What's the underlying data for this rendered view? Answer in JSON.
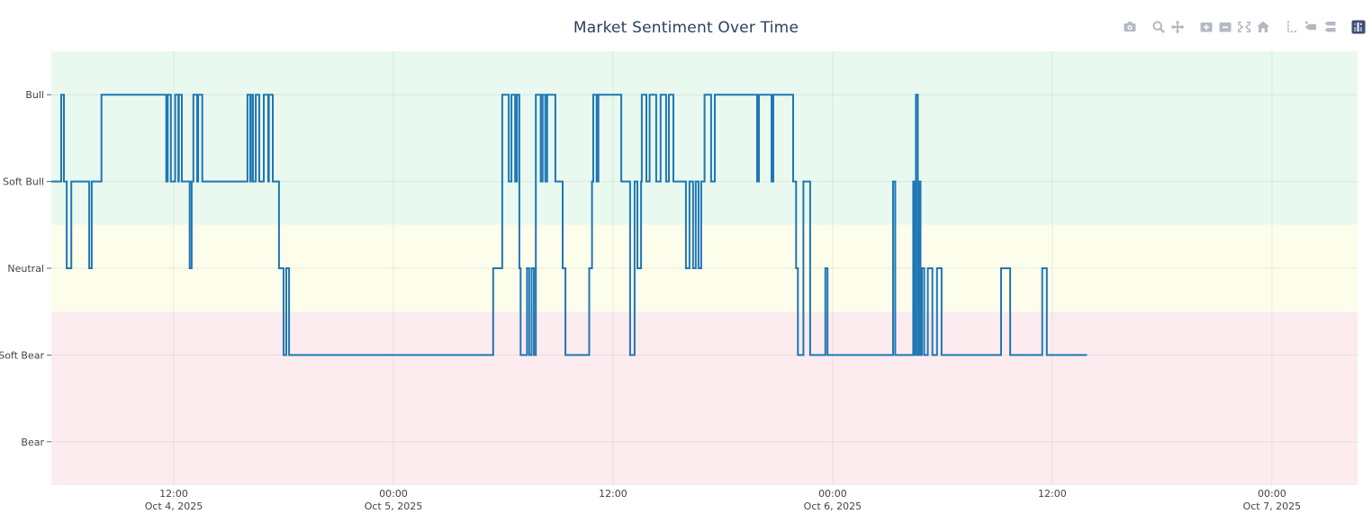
{
  "chart_data": {
    "type": "line",
    "subtype": "step-hv",
    "title": "Market Sentiment Over Time",
    "xlabel": "",
    "ylabel": "",
    "legend": null,
    "grid": true,
    "x_axis_unit": "hours since Oct 4, 2025 00:00",
    "x_range": [
      5.31,
      76.68
    ],
    "y_range": [
      -2.5,
      2.5
    ],
    "y_levels": [
      {
        "label": "Bull",
        "value": 2
      },
      {
        "label": "Soft Bull",
        "value": 1
      },
      {
        "label": "Neutral",
        "value": 0
      },
      {
        "label": "Soft Bear",
        "value": -1
      },
      {
        "label": "Bear",
        "value": -2
      }
    ],
    "x_ticks": [
      {
        "t": 12,
        "label": "12:00",
        "date": "Oct 4, 2025"
      },
      {
        "t": 24,
        "label": "00:00",
        "date": "Oct 5, 2025"
      },
      {
        "t": 36,
        "label": "12:00",
        "date": ""
      },
      {
        "t": 48,
        "label": "00:00",
        "date": "Oct 6, 2025"
      },
      {
        "t": 60,
        "label": "12:00",
        "date": ""
      },
      {
        "t": 72,
        "label": "00:00",
        "date": "Oct 7, 2025"
      }
    ],
    "bands": [
      {
        "name": "bull-zone",
        "from": 0.5,
        "to": 2.5,
        "color": "#e9f9ef"
      },
      {
        "name": "neutral-zone",
        "from": -0.5,
        "to": 0.5,
        "color": "#fdfdeb"
      },
      {
        "name": "bear-zone",
        "from": -2.5,
        "to": -0.5,
        "color": "#fdecef"
      }
    ],
    "series": [
      {
        "name": "sentiment",
        "color": "#1f77b4",
        "width": 2,
        "points": [
          [
            5.31,
            1
          ],
          [
            5.85,
            2
          ],
          [
            6.0,
            1
          ],
          [
            6.15,
            0
          ],
          [
            6.4,
            1
          ],
          [
            7.38,
            0
          ],
          [
            7.52,
            1
          ],
          [
            8.05,
            2
          ],
          [
            11.59,
            1
          ],
          [
            11.67,
            2
          ],
          [
            11.84,
            1
          ],
          [
            12.08,
            2
          ],
          [
            12.25,
            1
          ],
          [
            12.28,
            2
          ],
          [
            12.44,
            1
          ],
          [
            12.87,
            0
          ],
          [
            12.98,
            1
          ],
          [
            13.07,
            2
          ],
          [
            13.28,
            1
          ],
          [
            13.33,
            2
          ],
          [
            13.56,
            1
          ],
          [
            16.03,
            2
          ],
          [
            16.18,
            1
          ],
          [
            16.22,
            2
          ],
          [
            16.33,
            1
          ],
          [
            16.48,
            2
          ],
          [
            16.67,
            1
          ],
          [
            16.92,
            2
          ],
          [
            17.16,
            1
          ],
          [
            17.2,
            2
          ],
          [
            17.41,
            1
          ],
          [
            17.75,
            0
          ],
          [
            18.0,
            -1
          ],
          [
            18.15,
            0
          ],
          [
            18.3,
            -1
          ],
          [
            29.45,
            0
          ],
          [
            29.95,
            2
          ],
          [
            30.3,
            1
          ],
          [
            30.45,
            2
          ],
          [
            30.65,
            1
          ],
          [
            30.75,
            2
          ],
          [
            30.88,
            0
          ],
          [
            30.95,
            -1
          ],
          [
            31.3,
            0
          ],
          [
            31.42,
            -1
          ],
          [
            31.55,
            0
          ],
          [
            31.68,
            -1
          ],
          [
            31.78,
            2
          ],
          [
            32.05,
            1
          ],
          [
            32.15,
            2
          ],
          [
            32.3,
            1
          ],
          [
            32.4,
            2
          ],
          [
            32.85,
            1
          ],
          [
            33.25,
            0
          ],
          [
            33.4,
            -1
          ],
          [
            34.7,
            0
          ],
          [
            34.85,
            1
          ],
          [
            34.92,
            2
          ],
          [
            35.1,
            1
          ],
          [
            35.2,
            2
          ],
          [
            36.45,
            1
          ],
          [
            36.93,
            -1
          ],
          [
            37.18,
            1
          ],
          [
            37.33,
            0
          ],
          [
            37.53,
            1
          ],
          [
            37.57,
            2
          ],
          [
            37.82,
            1
          ],
          [
            38.0,
            2
          ],
          [
            38.36,
            1
          ],
          [
            38.6,
            2
          ],
          [
            38.9,
            1
          ],
          [
            39.05,
            2
          ],
          [
            39.3,
            1
          ],
          [
            39.98,
            0
          ],
          [
            40.18,
            1
          ],
          [
            40.37,
            0
          ],
          [
            40.52,
            1
          ],
          [
            40.67,
            0
          ],
          [
            40.82,
            1
          ],
          [
            41.0,
            2
          ],
          [
            41.36,
            1
          ],
          [
            41.56,
            2
          ],
          [
            43.87,
            1
          ],
          [
            43.97,
            2
          ],
          [
            44.66,
            1
          ],
          [
            44.76,
            2
          ],
          [
            45.84,
            1
          ],
          [
            46.0,
            0
          ],
          [
            46.1,
            -1
          ],
          [
            46.4,
            1
          ],
          [
            46.77,
            -1
          ],
          [
            47.6,
            0
          ],
          [
            47.72,
            -1
          ],
          [
            51.3,
            1
          ],
          [
            51.42,
            -1
          ],
          [
            52.4,
            1
          ],
          [
            52.48,
            -1
          ],
          [
            52.55,
            2
          ],
          [
            52.65,
            -1
          ],
          [
            52.72,
            1
          ],
          [
            52.8,
            -1
          ],
          [
            52.88,
            0
          ],
          [
            53.0,
            -1
          ],
          [
            53.2,
            0
          ],
          [
            53.45,
            -1
          ],
          [
            53.7,
            0
          ],
          [
            53.95,
            -1
          ],
          [
            57.2,
            0
          ],
          [
            57.7,
            -1
          ],
          [
            59.45,
            0
          ],
          [
            59.7,
            -1
          ],
          [
            61.9,
            -1
          ]
        ]
      }
    ],
    "colors": {
      "line": "#1f77b4",
      "title": "#2a3f5f",
      "tick_text": "#444444",
      "grid": "rgba(68,68,68,0.09)",
      "tick_mark": "#506784",
      "modebar_icon": "#b4b9c2",
      "plotly_logo": "#3f4f75"
    }
  },
  "modebar": {
    "groups": [
      [
        "camera"
      ],
      [
        "zoom",
        "pan"
      ],
      [
        "zoom-in",
        "zoom-out",
        "autoscale",
        "reset-axes"
      ],
      [
        "toggle-spikelines",
        "hover-closest",
        "hover-compare"
      ],
      [
        "plotly-logo"
      ]
    ]
  }
}
